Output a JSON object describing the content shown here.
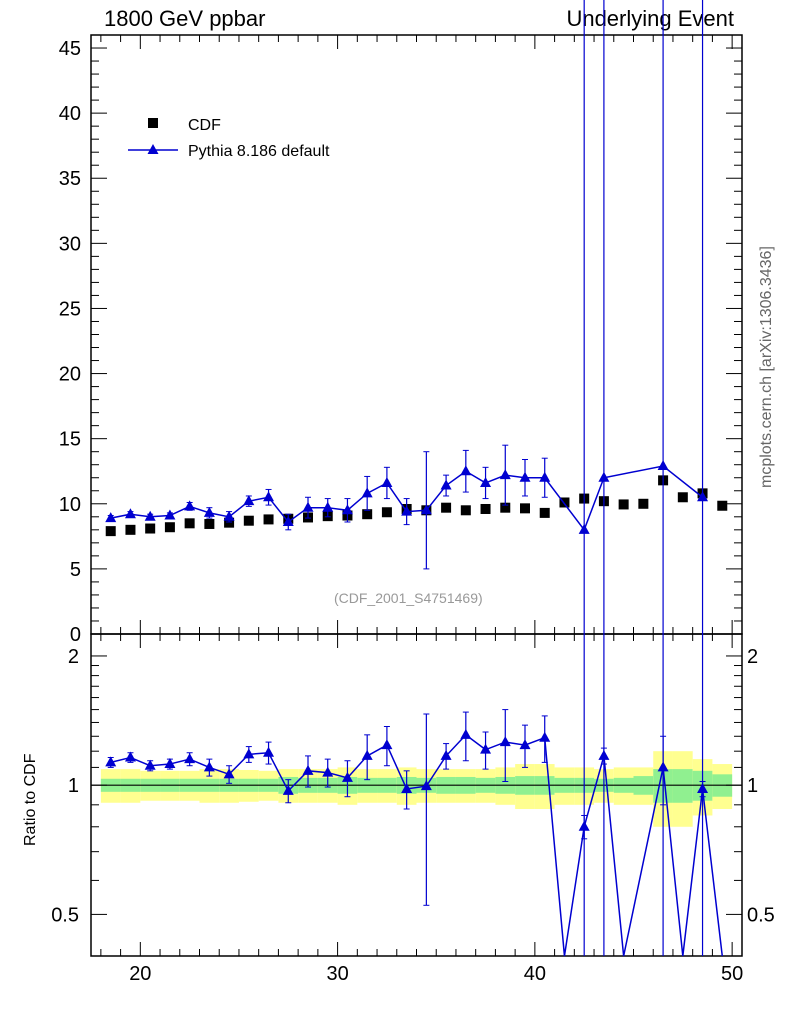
{
  "header": {
    "left_title": "1800 GeV ppbar",
    "right_title": "Underlying Event",
    "side_label": "mcplots.cern.ch [arXiv:1306.3436]",
    "reference_tag": "(CDF_2001_S4751469)",
    "ratio_axis_label": "Ratio to CDF"
  },
  "colors": {
    "mc": "#0000d0",
    "data": "#000000",
    "band_inner": "#90f090",
    "band_outer": "#ffff90"
  },
  "chart_data": [
    {
      "type": "line",
      "panel": "main",
      "xlim": [
        17.5,
        50.5
      ],
      "ylim": [
        0,
        46
      ],
      "xticks": [
        "20",
        "30",
        "40",
        "50"
      ],
      "yticks": [
        "0",
        "5",
        "10",
        "15",
        "20",
        "25",
        "30",
        "35",
        "40",
        "45"
      ],
      "legend": {
        "position": "top-left",
        "entries": [
          "CDF",
          "Pythia 8.186 default"
        ]
      },
      "series": [
        {
          "name": "CDF",
          "style": "markers-square",
          "x": [
            18.5,
            19.5,
            20.5,
            21.5,
            22.5,
            23.5,
            24.5,
            25.5,
            26.5,
            27.5,
            28.5,
            29.5,
            30.5,
            31.5,
            32.5,
            33.5,
            34.5,
            35.5,
            36.5,
            37.5,
            38.5,
            39.5,
            40.5,
            41.5,
            42.5,
            43.5,
            44.5,
            45.5,
            46.5,
            47.5,
            48.5,
            49.5
          ],
          "y": [
            7.9,
            8.0,
            8.1,
            8.2,
            8.5,
            8.45,
            8.55,
            8.7,
            8.8,
            8.85,
            8.95,
            9.05,
            9.1,
            9.2,
            9.35,
            9.6,
            9.5,
            9.7,
            9.5,
            9.6,
            9.7,
            9.65,
            9.3,
            10.1,
            10.4,
            10.2,
            9.95,
            10.0,
            11.8,
            10.5,
            10.8,
            9.85
          ]
        },
        {
          "name": "Pythia 8.186 default",
          "style": "line-triangles",
          "x": [
            18.5,
            19.5,
            20.5,
            21.5,
            22.5,
            23.5,
            24.5,
            25.5,
            26.5,
            27.5,
            28.5,
            29.5,
            30.5,
            31.5,
            32.5,
            33.5,
            34.5,
            35.5,
            36.5,
            37.5,
            38.5,
            39.5,
            40.5,
            42.5,
            43.5,
            46.5,
            48.5
          ],
          "y": [
            8.9,
            9.2,
            9.0,
            9.1,
            9.8,
            9.3,
            9.0,
            10.2,
            10.5,
            8.6,
            9.7,
            9.7,
            9.5,
            10.8,
            11.6,
            9.4,
            9.5,
            11.4,
            12.5,
            11.6,
            12.2,
            12.0,
            12.0,
            8.0,
            12.0,
            12.9,
            10.5
          ],
          "err": [
            0.2,
            0.2,
            0.2,
            0.2,
            0.3,
            0.4,
            0.4,
            0.4,
            0.6,
            0.6,
            0.8,
            0.7,
            0.9,
            1.3,
            1.2,
            1.0,
            4.5,
            0.8,
            1.6,
            1.2,
            2.3,
            1.4,
            1.5,
            45,
            45,
            45,
            45
          ]
        }
      ]
    },
    {
      "type": "line",
      "panel": "ratio",
      "xlim": [
        17.5,
        50.5
      ],
      "ylim": [
        0.4,
        2.25
      ],
      "ylabel": "Ratio to CDF",
      "yticks": [
        "0.5",
        "1",
        "2"
      ],
      "xticks": [
        "20",
        "30",
        "40",
        "50"
      ],
      "bands": {
        "x_edges": [
          18,
          19,
          20,
          21,
          22,
          23,
          24,
          25,
          26,
          27,
          28,
          29,
          30,
          31,
          32,
          33,
          34,
          35,
          36,
          37,
          38,
          39,
          40,
          41,
          42,
          43,
          44,
          45,
          46,
          47,
          48,
          49,
          50
        ],
        "inner_half": [
          0.035,
          0.035,
          0.035,
          0.035,
          0.035,
          0.035,
          0.035,
          0.035,
          0.035,
          0.045,
          0.04,
          0.04,
          0.045,
          0.04,
          0.04,
          0.045,
          0.04,
          0.045,
          0.045,
          0.04,
          0.045,
          0.05,
          0.05,
          0.04,
          0.04,
          0.035,
          0.04,
          0.05,
          0.09,
          0.09,
          0.08,
          0.06
        ],
        "outer_half": [
          0.09,
          0.09,
          0.08,
          0.08,
          0.08,
          0.09,
          0.09,
          0.085,
          0.08,
          0.09,
          0.09,
          0.09,
          0.1,
          0.09,
          0.09,
          0.1,
          0.09,
          0.09,
          0.09,
          0.09,
          0.1,
          0.12,
          0.12,
          0.1,
          0.1,
          0.09,
          0.1,
          0.1,
          0.2,
          0.2,
          0.15,
          0.12
        ]
      },
      "series": [
        {
          "name": "Pythia 8.186 default",
          "x": [
            18.5,
            19.5,
            20.5,
            21.5,
            22.5,
            23.5,
            24.5,
            25.5,
            26.5,
            27.5,
            28.5,
            29.5,
            30.5,
            31.5,
            32.5,
            33.5,
            34.5,
            35.5,
            36.5,
            37.5,
            38.5,
            39.5,
            40.5,
            41.5,
            42.5,
            43.5,
            44.5,
            46.5,
            47.5,
            48.5,
            49.5
          ],
          "y": [
            1.13,
            1.16,
            1.11,
            1.12,
            1.15,
            1.1,
            1.06,
            1.18,
            1.19,
            0.97,
            1.08,
            1.07,
            1.04,
            1.17,
            1.24,
            0.98,
            0.995,
            1.17,
            1.31,
            1.21,
            1.26,
            1.24,
            1.29,
            0.25,
            0.8,
            1.17,
            0.25,
            1.1,
            0.25,
            0.98,
            0.25
          ],
          "err": [
            0.03,
            0.03,
            0.03,
            0.03,
            0.04,
            0.05,
            0.05,
            0.05,
            0.07,
            0.06,
            0.09,
            0.08,
            0.1,
            0.14,
            0.13,
            0.1,
            0.47,
            0.08,
            0.17,
            0.12,
            0.24,
            0.14,
            0.16,
            0,
            0.05,
            0.05,
            0,
            0.2,
            0,
            0.04,
            0
          ]
        }
      ]
    }
  ]
}
